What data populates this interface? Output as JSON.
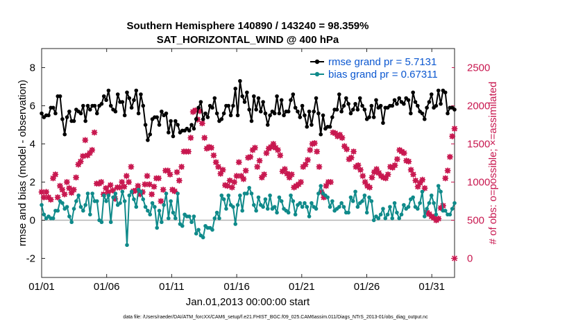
{
  "chart_data": {
    "type": "line",
    "title_line1": "Southern Hemisphere 140890 / 143240 = 98.359%",
    "title_line2": "SAT_HORIZONTAL_WIND @ 400 hPa",
    "xlabel": "Jan.01,2013 00:00:00 start",
    "ylabel_left": "rmse and bias (model - observation)",
    "ylabel_right": "# of obs: o=possible; ×=assimilated",
    "footer": "data file: /Users/raeder/DAI/ATM_forcXX/CAM6_setup/f.e21.FHIST_BGC.f09_025.CAM6assim.011/Diags_NTrS_2013-01/obs_diag_output.nc",
    "xlim": [
      1,
      32.75
    ],
    "ylim_left": [
      -3,
      9
    ],
    "ylim_right": [
      -250,
      2750
    ],
    "x_ticks": [
      1,
      6,
      11,
      16,
      21,
      26,
      31
    ],
    "x_tick_labels": [
      "01/01",
      "01/06",
      "01/11",
      "01/16",
      "01/21",
      "01/26",
      "01/31"
    ],
    "y_left_ticks": [
      "-2",
      "0",
      "2",
      "4",
      "6",
      "8"
    ],
    "y_right_ticks": [
      "0",
      "500",
      "1000",
      "1500",
      "2000",
      "2500"
    ],
    "colors": {
      "rmse": "#000000",
      "bias": "#0f8a8a",
      "obs": "#c8174f",
      "zero_line": "#b4b4b4",
      "legend_text": "#0b57d0"
    },
    "series": [
      {
        "name": "rmse",
        "legend": "rmse grand pr = 5.7131",
        "values": [
          5.6,
          5.4,
          5.5,
          5.5,
          5.9,
          5.9,
          5.6,
          6.5,
          6.5,
          5.3,
          4.5,
          5.4,
          5.7,
          5.2,
          5.2,
          5.8,
          5.7,
          5.6,
          6.0,
          5.2,
          6.0,
          5.8,
          6.0,
          6.0,
          5.6,
          6.0,
          6.1,
          6.5,
          6.3,
          6.8,
          6.0,
          5.8,
          5.7,
          6.6,
          6.2,
          6.2,
          5.5,
          6.7,
          6.4,
          5.9,
          6.3,
          6.8,
          5.6,
          6.6,
          6.0,
          5.0,
          4.2,
          4.5,
          5.3,
          5.4,
          5.4,
          5.0,
          5.7,
          5.5,
          5.6,
          4.6,
          5.2,
          4.4,
          5.2,
          5.0,
          4.6,
          4.7,
          4.7,
          4.8,
          4.7,
          5.0,
          4.8,
          5.3,
          5.9,
          6.2,
          5.3,
          5.6,
          5.4,
          6.0,
          5.9,
          6.4,
          5.6,
          5.2,
          5.3,
          5.6,
          6.0,
          6.0,
          5.5,
          6.0,
          6.9,
          5.5,
          7.3,
          6.5,
          6.2,
          6.7,
          5.8,
          5.2,
          6.5,
          5.8,
          6.4,
          5.7,
          6.2,
          5.6,
          5.0,
          5.5,
          5.7,
          5.6,
          6.5,
          5.6,
          6.3,
          5.5,
          5.7,
          5.7,
          6.3,
          6.6,
          5.9,
          5.7,
          5.4,
          6.0,
          5.5,
          4.9,
          5.7,
          5.0,
          5.7,
          6.4,
          5.6,
          4.5,
          5.5,
          4.8,
          4.9,
          4.9,
          5.4,
          5.8,
          5.8,
          6.6,
          5.7,
          6.0,
          6.4,
          6.1,
          5.6,
          5.8,
          6.1,
          5.8,
          6.4,
          6.0,
          5.8,
          5.3,
          5.4,
          6.0,
          5.4,
          6.3,
          5.9,
          6.0,
          5.1,
          5.9,
          5.9,
          6.0,
          6.0,
          6.3,
          6.1,
          6.4,
          6.2,
          6.1,
          6.4,
          6.3,
          5.6,
          6.7,
          6.2,
          6.0,
          5.7,
          5.6,
          5.3,
          5.9,
          6.2,
          6.6,
          5.9,
          6.0,
          6.8,
          6.1,
          6.8,
          6.7,
          5.6,
          5.9,
          5.9,
          5.8
        ]
      },
      {
        "name": "bias",
        "legend": "bias grand pr = 0.67311",
        "values": [
          0.8,
          0.3,
          0.1,
          0.2,
          0.1,
          0.1,
          0.5,
          0.5,
          1.0,
          0.9,
          0.6,
          0.7,
          0.2,
          -0.1,
          0.6,
          1.0,
          1.3,
          0.7,
          0.5,
          0.8,
          1.4,
          0.3,
          1.4,
          1.0,
          1.0,
          0.0,
          -0.1,
          1.3,
          1.0,
          1.3,
          -0.1,
          1.2,
          1.4,
          0.8,
          0.9,
          1.5,
          1.0,
          -1.3,
          1.3,
          1.5,
          1.1,
          0.7,
          1.6,
          1.5,
          1.1,
          0.7,
          0.5,
          0.3,
          0.9,
          0.7,
          -0.4,
          0.5,
          -0.1,
          0.8,
          1.4,
          0.1,
          1.0,
          0.4,
          0.1,
          1.4,
          -0.2,
          -0.3,
          0.3,
          0.2,
          0.2,
          -0.1,
          0.2,
          -0.7,
          -0.5,
          -0.8,
          -0.9,
          -0.3,
          -0.4,
          -0.4,
          -0.5,
          0.1,
          0.4,
          0.1,
          1.3,
          1.1,
          0.6,
          1.3,
          0.8,
          0.7,
          -0.2,
          0.8,
          1.3,
          0.5,
          1.4,
          1.4,
          1.7,
          1.4,
          0.8,
          0.5,
          1.2,
          0.8,
          0.7,
          1.1,
          0.6,
          1.3,
          0.6,
          0.7,
          0.4,
          1.2,
          1.0,
          0.6,
          0.5,
          0.4,
          1.3,
          1.0,
          0.3,
          0.8,
          0.9,
          0.7,
          0.9,
          0.7,
          0.2,
          0.9,
          0.7,
          0.6,
          1.4,
          1.8,
          1.4,
          1.3,
          1.2,
          0.7,
          1.0,
          0.5,
          0.6,
          0.7,
          0.9,
          0.7,
          0.4,
          0.4,
          1.2,
          1.0,
          1.5,
          0.7,
          0.9,
          1.0,
          1.3,
          0.4,
          1.2,
          1.0,
          0.0,
          0.2,
          0.1,
          0.3,
          0.6,
          0.1,
          0.3,
          0.7,
          0.1,
          0.9,
          0.4,
          0.1,
          0.3,
          0.8,
          0.6,
          0.7,
          1.1,
          1.2,
          0.7,
          0.6,
          0.9,
          1.5,
          0.2,
          0.6,
          0.9,
          1.3,
          0.9,
          0.3,
          1.8,
          1.5,
          0.5,
          0.5,
          0.3,
          0.3,
          0.6,
          0.9
        ]
      },
      {
        "name": "obs_assimilated",
        "values": [
          870,
          800,
          870,
          800,
          770,
          1050,
          1100,
          800,
          950,
          900,
          840,
          1000,
          920,
          860,
          900,
          1060,
          1230,
          1270,
          1340,
          1550,
          1350,
          1380,
          1420,
          1650,
          980,
          980,
          1000,
          840,
          920,
          870,
          960,
          890,
          780,
          930,
          930,
          1000,
          940,
          1080,
          1000,
          1200,
          880,
          890,
          950,
          840,
          870,
          970,
          1080,
          970,
          840,
          940,
          1050,
          1050,
          750,
          900,
          1150,
          1150,
          1100,
          900,
          880,
          1130,
          1020,
          1200,
          1400,
          1400,
          1400,
          1580,
          1920,
          1940,
          1820,
          1930,
          1770,
          1580,
          1440,
          1460,
          1450,
          1350,
          1260,
          1200,
          1110,
          1160,
          960,
          950,
          1020,
          930,
          1000,
          1080,
          1260,
          1080,
          1040,
          1150,
          1320,
          1330,
          1420,
          1450,
          1200,
          1280,
          1060,
          1100,
          1380,
          1440,
          1460,
          1500,
          1450,
          1420,
          1350,
          1140,
          1170,
          1110,
          1060,
          1100,
          930,
          950,
          970,
          1000,
          1200,
          1230,
          1290,
          1420,
          1500,
          1510,
          1400,
          1200,
          870,
          800,
          950,
          1000,
          1000,
          1650,
          1640,
          1600,
          1620,
          1580,
          1470,
          1430,
          1300,
          1320,
          1400,
          1200,
          1220,
          1160,
          1080,
          1000,
          950,
          930,
          1060,
          1130,
          1170,
          1120,
          1080,
          1060,
          1050,
          1100,
          1200,
          1190,
          1220,
          1300,
          1420,
          1400,
          1380,
          1280,
          1270,
          1160,
          1100,
          1020,
          940,
          990,
          1030,
          920,
          600,
          580,
          550,
          530,
          500,
          520,
          660,
          690,
          1050,
          1150,
          1330,
          1600,
          1700
        ]
      },
      {
        "name": "obs_possible",
        "values": [
          870,
          800,
          870,
          800,
          770,
          1050,
          1100,
          800,
          950,
          900,
          840,
          1000,
          920,
          860,
          900,
          1060,
          1230,
          1270,
          1340,
          1550,
          1350,
          1380,
          1420,
          1650,
          980,
          980,
          1000,
          840,
          920,
          870,
          960,
          890,
          780,
          930,
          930,
          1000,
          940,
          1080,
          1000,
          1200,
          880,
          890,
          950,
          840,
          870,
          970,
          1080,
          970,
          840,
          940,
          1050,
          1050,
          750,
          900,
          1150,
          1150,
          1100,
          900,
          880,
          1130,
          1020,
          1200,
          1400,
          1400,
          1400,
          1580,
          1920,
          1940,
          1820,
          1930,
          1770,
          1580,
          1440,
          1460,
          1450,
          1350,
          1260,
          1200,
          1110,
          1160,
          960,
          950,
          1020,
          930,
          1000,
          1080,
          1260,
          1080,
          1040,
          1150,
          1320,
          1330,
          1420,
          1450,
          1200,
          1280,
          1060,
          1100,
          1380,
          1440,
          1460,
          1500,
          1450,
          1420,
          1350,
          1140,
          1170,
          1110,
          1060,
          1100,
          930,
          950,
          970,
          1000,
          1200,
          1230,
          1290,
          1420,
          1500,
          1510,
          1400,
          1200,
          870,
          800,
          950,
          1000,
          1000,
          1650,
          1640,
          1600,
          1620,
          1580,
          1470,
          1430,
          1300,
          1320,
          1400,
          1200,
          1220,
          1160,
          1080,
          1000,
          950,
          930,
          1060,
          1130,
          1170,
          1120,
          1080,
          1060,
          1050,
          1100,
          1200,
          1190,
          1220,
          1300,
          1420,
          1400,
          1380,
          1280,
          1270,
          1160,
          1100,
          1020,
          940,
          990,
          1030,
          920,
          600,
          580,
          550,
          530,
          500,
          520,
          660,
          690,
          1050,
          1150,
          1330,
          1600,
          1700
        ]
      }
    ],
    "extra_points": [
      {
        "series": "obs_assimilated",
        "x": 32.75,
        "value": 0
      }
    ],
    "grid": false,
    "legend_position": "top-right"
  }
}
